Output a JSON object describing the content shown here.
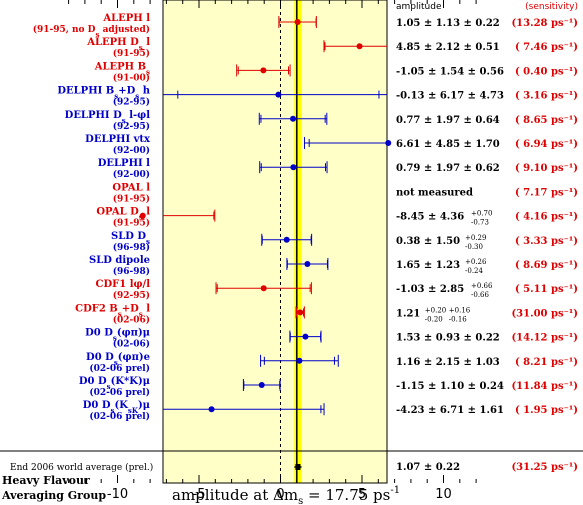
{
  "chart_data": {
    "type": "scatter",
    "xlabel": "amplitude at Δm",
    "xlabel_sub": "s",
    "xlabel_tail": " = 17.75 ps",
    "xlabel_sup": "-1",
    "xlim": [
      -13.5,
      12.5
    ],
    "xticks": [
      -10,
      -5,
      0,
      5,
      10
    ],
    "reference_line": 1,
    "column_headers": {
      "amplitude": "amplitude",
      "sensitivity": "(sensitivity)"
    },
    "group_label": [
      "Heavy Flavour",
      "Averaging Group"
    ],
    "colors": {
      "red": "#e00000",
      "blue": "#0000c8",
      "band": "#ffff00",
      "panel": "#ffffc8"
    },
    "measurements": [
      {
        "name": "ALEPH l",
        "period": "(91-95, no D_s adjusted)",
        "color": "red",
        "x": 1.05,
        "stat": 1.13,
        "syst": 0.22,
        "text": "1.05 ± 1.13 ± 0.22",
        "sensitivity": "(13.28 ps⁻¹)",
        "shown": true
      },
      {
        "name": "ALEPH D_s l",
        "period": "(91-95)",
        "color": "red",
        "x": 4.85,
        "stat": 2.12,
        "syst": 0.51,
        "text": "4.85 ± 2.12 ± 0.51",
        "sensitivity": "( 7.46 ps⁻¹)",
        "shown": true
      },
      {
        "name": "ALEPH B_s",
        "period": "(91-00)",
        "color": "red",
        "x": -1.05,
        "stat": 1.54,
        "syst": 0.56,
        "text": "-1.05 ± 1.54 ± 0.56",
        "sensitivity": "( 0.40 ps⁻¹)",
        "shown": true
      },
      {
        "name": "DELPHI B_s+D_s h",
        "period": "(92-95)",
        "color": "blue",
        "x": -0.13,
        "stat": 6.17,
        "syst": 4.73,
        "text": "-0.13 ± 6.17 ± 4.73",
        "sensitivity": "( 3.16 ps⁻¹)",
        "shown": true
      },
      {
        "name": "DELPHI D_s l-φl",
        "period": "(92-95)",
        "color": "blue",
        "x": 0.77,
        "stat": 1.97,
        "syst": 0.64,
        "text": "0.77 ± 1.97 ± 0.64",
        "sensitivity": "( 8.65 ps⁻¹)",
        "shown": true
      },
      {
        "name": "DELPHI vtx",
        "period": "(92-00)",
        "color": "blue",
        "x": 6.61,
        "stat": 4.85,
        "syst": 1.7,
        "text": "6.61 ± 4.85 ± 1.70",
        "sensitivity": "( 6.94 ps⁻¹)",
        "shown": true
      },
      {
        "name": "DELPHI l",
        "period": "(92-00)",
        "color": "blue",
        "x": 0.79,
        "stat": 1.97,
        "syst": 0.62,
        "text": "0.79 ± 1.97 ± 0.62",
        "sensitivity": "( 9.10 ps⁻¹)",
        "shown": true
      },
      {
        "name": "OPAL l",
        "period": "(91-95)",
        "color": "red",
        "x": null,
        "stat": null,
        "syst": null,
        "text": "not measured",
        "sensitivity": "( 7.17 ps⁻¹)",
        "shown": false
      },
      {
        "name": "OPAL D_s l",
        "period": "(91-95)",
        "color": "red",
        "x": -8.45,
        "stat": 4.36,
        "syst": 0.72,
        "text": "-8.45 ± 4.36",
        "syst_up": "+0.70",
        "syst_dn": "-0.73",
        "sensitivity": "( 4.16 ps⁻¹)",
        "shown": true
      },
      {
        "name": "SLD D_s",
        "period": "(96-98)",
        "color": "blue",
        "x": 0.38,
        "stat": 1.5,
        "syst": 0.3,
        "text": "0.38 ± 1.50",
        "syst_up": "+0.29",
        "syst_dn": "-0.30",
        "sensitivity": "( 3.33 ps⁻¹)",
        "shown": true
      },
      {
        "name": "SLD dipole",
        "period": "(96-98)",
        "color": "blue",
        "x": 1.65,
        "stat": 1.23,
        "syst": 0.26,
        "text": "1.65 ± 1.23",
        "syst_up": "+0.26",
        "syst_dn": "-0.24",
        "sensitivity": "( 8.69 ps⁻¹)",
        "shown": true
      },
      {
        "name": "CDF1 lφ/l",
        "period": "(92-95)",
        "color": "red",
        "x": -1.03,
        "stat": 2.85,
        "syst": 0.66,
        "text": "-1.03 ± 2.85",
        "syst_up": "+0.66",
        "syst_dn": "-0.66",
        "sensitivity": "( 5.11 ps⁻¹)",
        "shown": true
      },
      {
        "name": "CDF2 B_s+D_s l",
        "period": "(02-06)",
        "color": "red",
        "x": 1.21,
        "stat": 0.2,
        "syst": 0.16,
        "text": "1.21",
        "stat_up": "+0.20",
        "stat_dn": "-0.20",
        "syst_up": "+0.16",
        "syst_dn": "-0.16",
        "sensitivity": "(31.00 ps⁻¹)",
        "shown": true
      },
      {
        "name": "D0 D_s(φπ)μ",
        "period": "(02-06)",
        "color": "blue",
        "x": 1.53,
        "stat": 0.93,
        "syst": 0.22,
        "text": "1.53 ± 0.93 ± 0.22",
        "sensitivity": "(14.12 ps⁻¹)",
        "shown": true
      },
      {
        "name": "D0 D_s(φπ)e",
        "period": "(02-06 prel)",
        "color": "blue",
        "x": 1.16,
        "stat": 2.15,
        "syst": 1.03,
        "text": "1.16 ± 2.15 ± 1.03",
        "sensitivity": "( 8.21 ps⁻¹)",
        "shown": true
      },
      {
        "name": "D0 D_s(K*K)μ",
        "period": "(02-06 prel)",
        "color": "blue",
        "x": -1.15,
        "stat": 1.1,
        "syst": 0.24,
        "text": "-1.15 ± 1.10 ± 0.24",
        "sensitivity": "(11.84 ps⁻¹)",
        "shown": true
      },
      {
        "name": "D0 D_s(K_sK)μ",
        "period": "(02-06 prel)",
        "color": "blue",
        "x": -4.23,
        "stat": 6.71,
        "syst": 1.61,
        "text": "-4.23 ± 6.71 ± 1.61",
        "sensitivity": "( 1.95 ps⁻¹)",
        "shown": true
      }
    ],
    "average": {
      "name": "End 2006 world average (prel.)",
      "x": 1.07,
      "err": 0.22,
      "text": "1.07 ± 0.22",
      "sensitivity": "(31.25 ps⁻¹)"
    }
  }
}
